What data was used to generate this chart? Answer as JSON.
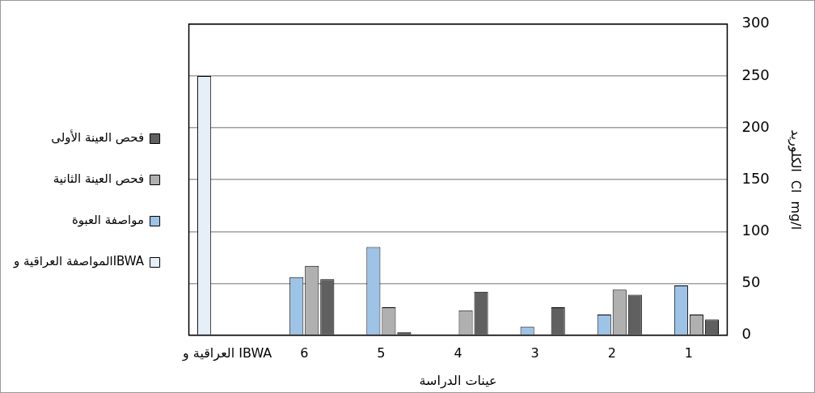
{
  "chart_data": {
    "type": "bar",
    "xlabel": "عينات الدراسة",
    "ylabel": "الكلوريد  Cl  mg/l",
    "categories": [
      "العراقية و IBWA",
      "6",
      "5",
      "4",
      "3",
      "2",
      "1"
    ],
    "series": [
      {
        "name": "فحص العينة الأولى",
        "color": "#606060",
        "values": [
          null,
          54,
          3,
          42,
          27,
          39,
          15
        ]
      },
      {
        "name": "فحص العينة الثانية",
        "color": "#b0b0b0",
        "values": [
          null,
          67,
          27,
          24,
          null,
          44,
          20
        ]
      },
      {
        "name": "مواصفة العبوة",
        "color": "#9dc3e6",
        "values": [
          null,
          56,
          85,
          null,
          8,
          20,
          48
        ]
      },
      {
        "name": "المواصفة العراقية وIBWA",
        "color": "#e6eef8",
        "values": [
          250,
          null,
          null,
          null,
          null,
          null,
          null
        ]
      }
    ],
    "ylim": [
      0,
      300
    ],
    "yticks": [
      0,
      50,
      100,
      150,
      200,
      250,
      300
    ],
    "grid": "y",
    "legend": "left"
  }
}
